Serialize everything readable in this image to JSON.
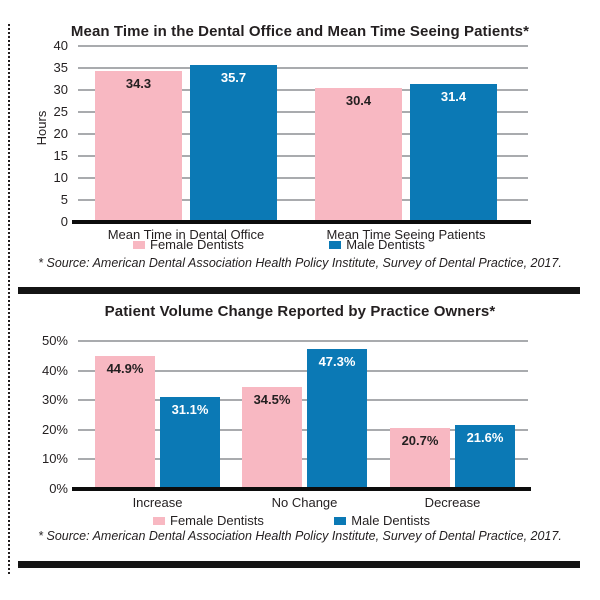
{
  "page": {
    "background": "#ffffff"
  },
  "colors": {
    "female_pink": "#f8b8c2",
    "male_blue": "#0b79b5",
    "gridline": "#a9abae",
    "axis": "#0c0c0c",
    "text": "#231f20",
    "label_on_pink": "#231f20",
    "label_on_blue": "#ffffff"
  },
  "chart_data": [
    {
      "type": "bar",
      "title": "Mean Time in the Dental Office and Mean Time Seeing Patients*",
      "categories": [
        "Mean Time in Dental Office",
        "Mean Time Seeing Patients"
      ],
      "series": [
        {
          "name": "Female Dentists",
          "values": [
            34.3,
            30.4
          ],
          "color": "#f8b8c2",
          "value_label_color": "#231f20"
        },
        {
          "name": "Male Dentists",
          "values": [
            35.7,
            31.4
          ],
          "color": "#0b79b5",
          "value_label_color": "#ffffff"
        }
      ],
      "xlabel": "",
      "ylabel": "Hours",
      "ylim": [
        0,
        40
      ],
      "ytick_step": 5,
      "tick_suffix": "",
      "label_suffix": "",
      "grid": true,
      "legend_position": "bottom",
      "source": "* Source: American Dental Association Health Policy Institute, Survey of Dental Practice, 2017."
    },
    {
      "type": "bar",
      "title": "Patient Volume Change Reported by Practice Owners*",
      "categories": [
        "Increase",
        "No Change",
        "Decrease"
      ],
      "series": [
        {
          "name": "Female Dentists",
          "values": [
            44.9,
            34.5,
            20.7
          ],
          "color": "#f8b8c2",
          "value_label_color": "#231f20"
        },
        {
          "name": "Male Dentists",
          "values": [
            31.1,
            47.3,
            21.6
          ],
          "color": "#0b79b5",
          "value_label_color": "#ffffff"
        }
      ],
      "xlabel": "",
      "ylabel": "",
      "ylim": [
        0,
        50
      ],
      "ytick_step": 10,
      "tick_suffix": "%",
      "label_suffix": "%",
      "grid": true,
      "legend_position": "bottom",
      "source": "* Source: American Dental Association Health Policy Institute, Survey of Dental Practice, 2017."
    }
  ]
}
